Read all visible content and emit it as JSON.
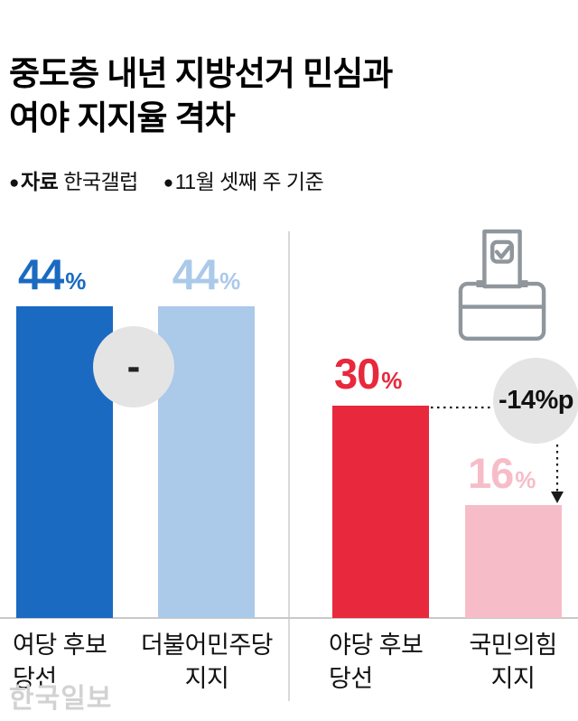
{
  "header": {
    "title_line1": "중도층 내년 지방선거 민심과",
    "title_line2": "여야 지지율 격차",
    "source_bullet": "●",
    "source_label": "자료",
    "source_value": "한국갤럽",
    "basis_bullet": "●",
    "basis_text": "11월 셋째 주 기준"
  },
  "chart_data": {
    "type": "bar",
    "title": "중도층 내년 지방선거 민심과 여야 지지율 격차",
    "source": "한국갤럽",
    "period": "11월 셋째 주 기준",
    "unit": "%",
    "ylim": [
      0,
      50
    ],
    "grid": false,
    "groups": [
      {
        "bars": [
          {
            "label": "여당 후보 당선",
            "label_lines": [
              "여당 후보",
              "당선"
            ],
            "value": 44,
            "display": "44",
            "unit": "%",
            "color": "#1a6ac1"
          },
          {
            "label": "더불어민주당 지지",
            "label_lines": [
              "더불어민주당",
              "지지"
            ],
            "value": 44,
            "display": "44",
            "unit": "%",
            "color": "#abc9e9"
          }
        ],
        "gap_label": "-",
        "gap_value": 0
      },
      {
        "bars": [
          {
            "label": "야당 후보 당선",
            "label_lines": [
              "야당 후보",
              "당선"
            ],
            "value": 30,
            "display": "30",
            "unit": "%",
            "color": "#e8283c"
          },
          {
            "label": "국민의힘 지지",
            "label_lines": [
              "국민의힘",
              "지지"
            ],
            "value": 16,
            "display": "16",
            "unit": "%",
            "color": "#f6bdc8"
          }
        ],
        "gap_label": "-14%p",
        "gap_value": -14
      }
    ]
  },
  "icons": {
    "ballot_box": "ballot-box-icon",
    "bullet": "●"
  },
  "watermark": "한국일보"
}
